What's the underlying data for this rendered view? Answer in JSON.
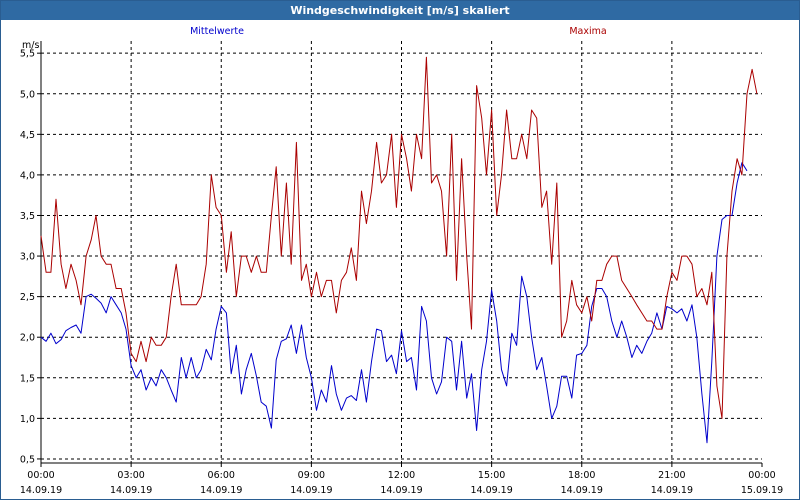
{
  "window": {
    "title": "Windgeschwindigkeit [m/s] skaliert"
  },
  "chart_data": {
    "type": "line",
    "title": "Windgeschwindigkeit [m/s] skaliert",
    "ylabel": "m/s",
    "xlabel": "",
    "ylim": [
      0.45,
      5.65
    ],
    "xlim": [
      0,
      24
    ],
    "grid": true,
    "y_ticks": [
      "0,5",
      "1,0",
      "1,5",
      "2,0",
      "2,5",
      "3,0",
      "3,5",
      "4,0",
      "4,5",
      "5,0",
      "5,5"
    ],
    "x_ticks": [
      {
        "time": "00:00",
        "date": "14.09.19"
      },
      {
        "time": "03:00",
        "date": "14.09.19"
      },
      {
        "time": "06:00",
        "date": "14.09.19"
      },
      {
        "time": "09:00",
        "date": "14.09.19"
      },
      {
        "time": "12:00",
        "date": "14.09.19"
      },
      {
        "time": "15:00",
        "date": "14.09.19"
      },
      {
        "time": "18:00",
        "date": "14.09.19"
      },
      {
        "time": "21:00",
        "date": "14.09.19"
      },
      {
        "time": "00:00",
        "date": "15.09.19"
      }
    ],
    "series": [
      {
        "name": "Mittelwerte",
        "color": "#0000cc",
        "points": [
          [
            0,
            2.0
          ],
          [
            0.17,
            1.95
          ],
          [
            0.33,
            2.05
          ],
          [
            0.5,
            1.92
          ],
          [
            0.67,
            1.97
          ],
          [
            0.83,
            2.08
          ],
          [
            1.0,
            2.12
          ],
          [
            1.17,
            2.15
          ],
          [
            1.33,
            2.05
          ],
          [
            1.5,
            2.5
          ],
          [
            1.67,
            2.53
          ],
          [
            1.83,
            2.48
          ],
          [
            2.0,
            2.42
          ],
          [
            2.17,
            2.3
          ],
          [
            2.33,
            2.5
          ],
          [
            2.5,
            2.4
          ],
          [
            2.67,
            2.3
          ],
          [
            2.83,
            2.1
          ],
          [
            3.0,
            1.65
          ],
          [
            3.17,
            1.5
          ],
          [
            3.33,
            1.6
          ],
          [
            3.5,
            1.35
          ],
          [
            3.67,
            1.5
          ],
          [
            3.83,
            1.4
          ],
          [
            4.0,
            1.6
          ],
          [
            4.17,
            1.5
          ],
          [
            4.33,
            1.35
          ],
          [
            4.5,
            1.2
          ],
          [
            4.67,
            1.75
          ],
          [
            4.83,
            1.5
          ],
          [
            5.0,
            1.75
          ],
          [
            5.17,
            1.5
          ],
          [
            5.33,
            1.6
          ],
          [
            5.5,
            1.85
          ],
          [
            5.67,
            1.72
          ],
          [
            5.83,
            2.1
          ],
          [
            6.0,
            2.38
          ],
          [
            6.17,
            2.3
          ],
          [
            6.33,
            1.55
          ],
          [
            6.5,
            1.9
          ],
          [
            6.67,
            1.3
          ],
          [
            6.83,
            1.6
          ],
          [
            7.0,
            1.8
          ],
          [
            7.17,
            1.52
          ],
          [
            7.33,
            1.2
          ],
          [
            7.5,
            1.15
          ],
          [
            7.67,
            0.88
          ],
          [
            7.83,
            1.72
          ],
          [
            8.0,
            1.95
          ],
          [
            8.17,
            1.98
          ],
          [
            8.33,
            2.15
          ],
          [
            8.5,
            1.8
          ],
          [
            8.67,
            2.15
          ],
          [
            8.83,
            1.75
          ],
          [
            9.0,
            1.5
          ],
          [
            9.17,
            1.1
          ],
          [
            9.33,
            1.35
          ],
          [
            9.5,
            1.2
          ],
          [
            9.67,
            1.65
          ],
          [
            9.83,
            1.3
          ],
          [
            10.0,
            1.1
          ],
          [
            10.17,
            1.25
          ],
          [
            10.33,
            1.28
          ],
          [
            10.5,
            1.22
          ],
          [
            10.67,
            1.6
          ],
          [
            10.83,
            1.2
          ],
          [
            11.0,
            1.7
          ],
          [
            11.17,
            2.1
          ],
          [
            11.33,
            2.08
          ],
          [
            11.5,
            1.7
          ],
          [
            11.67,
            1.78
          ],
          [
            11.83,
            1.55
          ],
          [
            12.0,
            2.08
          ],
          [
            12.17,
            1.7
          ],
          [
            12.33,
            1.75
          ],
          [
            12.5,
            1.35
          ],
          [
            12.67,
            2.38
          ],
          [
            12.83,
            2.2
          ],
          [
            13.0,
            1.5
          ],
          [
            13.17,
            1.3
          ],
          [
            13.33,
            1.45
          ],
          [
            13.5,
            2.0
          ],
          [
            13.67,
            1.95
          ],
          [
            13.83,
            1.35
          ],
          [
            14.0,
            1.95
          ],
          [
            14.17,
            1.25
          ],
          [
            14.33,
            1.55
          ],
          [
            14.5,
            0.85
          ],
          [
            14.67,
            1.6
          ],
          [
            14.83,
            1.95
          ],
          [
            15.0,
            2.58
          ],
          [
            15.17,
            2.2
          ],
          [
            15.33,
            1.6
          ],
          [
            15.5,
            1.4
          ],
          [
            15.67,
            2.05
          ],
          [
            15.83,
            1.9
          ],
          [
            16.0,
            2.75
          ],
          [
            16.17,
            2.5
          ],
          [
            16.33,
            2.0
          ],
          [
            16.5,
            1.6
          ],
          [
            16.67,
            1.75
          ],
          [
            16.83,
            1.4
          ],
          [
            17.0,
            1.0
          ],
          [
            17.17,
            1.15
          ],
          [
            17.33,
            1.52
          ],
          [
            17.5,
            1.52
          ],
          [
            17.67,
            1.25
          ],
          [
            17.83,
            1.78
          ],
          [
            18.0,
            1.8
          ],
          [
            18.17,
            1.9
          ],
          [
            18.33,
            2.38
          ],
          [
            18.5,
            2.6
          ],
          [
            18.67,
            2.6
          ],
          [
            18.83,
            2.5
          ],
          [
            19.0,
            2.2
          ],
          [
            19.17,
            2.0
          ],
          [
            19.33,
            2.2
          ],
          [
            19.5,
            2.0
          ],
          [
            19.67,
            1.75
          ],
          [
            19.83,
            1.9
          ],
          [
            20.0,
            1.8
          ],
          [
            20.17,
            1.95
          ],
          [
            20.33,
            2.05
          ],
          [
            20.5,
            2.3
          ],
          [
            20.67,
            2.1
          ],
          [
            20.83,
            2.38
          ],
          [
            21.0,
            2.35
          ],
          [
            21.17,
            2.3
          ],
          [
            21.33,
            2.35
          ],
          [
            21.5,
            2.2
          ],
          [
            21.67,
            2.4
          ],
          [
            21.83,
            2.0
          ],
          [
            22.0,
            1.3
          ],
          [
            22.17,
            0.7
          ],
          [
            22.33,
            1.7
          ],
          [
            22.5,
            3.0
          ],
          [
            22.67,
            3.45
          ],
          [
            22.83,
            3.5
          ],
          [
            23.0,
            3.5
          ],
          [
            23.17,
            3.9
          ],
          [
            23.33,
            4.15
          ],
          [
            23.5,
            4.05
          ]
        ]
      },
      {
        "name": "Maxima",
        "color": "#aa0000",
        "points": [
          [
            0,
            3.25
          ],
          [
            0.17,
            2.8
          ],
          [
            0.33,
            2.8
          ],
          [
            0.5,
            3.7
          ],
          [
            0.67,
            2.9
          ],
          [
            0.83,
            2.6
          ],
          [
            1.0,
            2.9
          ],
          [
            1.17,
            2.7
          ],
          [
            1.33,
            2.4
          ],
          [
            1.5,
            3.0
          ],
          [
            1.67,
            3.2
          ],
          [
            1.83,
            3.5
          ],
          [
            2.0,
            3.0
          ],
          [
            2.17,
            2.9
          ],
          [
            2.33,
            2.9
          ],
          [
            2.5,
            2.6
          ],
          [
            2.67,
            2.6
          ],
          [
            2.83,
            2.3
          ],
          [
            3.0,
            1.8
          ],
          [
            3.17,
            1.7
          ],
          [
            3.33,
            1.95
          ],
          [
            3.5,
            1.7
          ],
          [
            3.67,
            2.0
          ],
          [
            3.83,
            1.9
          ],
          [
            4.0,
            1.9
          ],
          [
            4.17,
            2.0
          ],
          [
            4.33,
            2.5
          ],
          [
            4.5,
            2.9
          ],
          [
            4.67,
            2.4
          ],
          [
            4.83,
            2.4
          ],
          [
            5.0,
            2.4
          ],
          [
            5.17,
            2.4
          ],
          [
            5.33,
            2.5
          ],
          [
            5.5,
            2.9
          ],
          [
            5.67,
            4.0
          ],
          [
            5.83,
            3.6
          ],
          [
            6.0,
            3.5
          ],
          [
            6.17,
            2.8
          ],
          [
            6.33,
            3.3
          ],
          [
            6.5,
            2.5
          ],
          [
            6.67,
            3.0
          ],
          [
            6.83,
            3.0
          ],
          [
            7.0,
            2.8
          ],
          [
            7.17,
            3.0
          ],
          [
            7.33,
            2.8
          ],
          [
            7.5,
            2.8
          ],
          [
            7.67,
            3.5
          ],
          [
            7.83,
            4.1
          ],
          [
            8.0,
            3.0
          ],
          [
            8.17,
            3.9
          ],
          [
            8.33,
            2.9
          ],
          [
            8.5,
            4.4
          ],
          [
            8.67,
            2.7
          ],
          [
            8.83,
            2.9
          ],
          [
            9.0,
            2.5
          ],
          [
            9.17,
            2.8
          ],
          [
            9.33,
            2.5
          ],
          [
            9.5,
            2.7
          ],
          [
            9.67,
            2.7
          ],
          [
            9.83,
            2.3
          ],
          [
            10.0,
            2.7
          ],
          [
            10.17,
            2.8
          ],
          [
            10.33,
            3.1
          ],
          [
            10.5,
            2.7
          ],
          [
            10.67,
            3.8
          ],
          [
            10.83,
            3.4
          ],
          [
            11.0,
            3.8
          ],
          [
            11.17,
            4.4
          ],
          [
            11.33,
            3.9
          ],
          [
            11.5,
            4.0
          ],
          [
            11.67,
            4.5
          ],
          [
            11.83,
            3.6
          ],
          [
            12.0,
            4.5
          ],
          [
            12.17,
            4.2
          ],
          [
            12.33,
            3.8
          ],
          [
            12.5,
            4.5
          ],
          [
            12.67,
            4.2
          ],
          [
            12.83,
            5.45
          ],
          [
            13.0,
            3.9
          ],
          [
            13.17,
            4.0
          ],
          [
            13.33,
            3.8
          ],
          [
            13.5,
            3.0
          ],
          [
            13.67,
            4.5
          ],
          [
            13.83,
            2.7
          ],
          [
            14.0,
            4.2
          ],
          [
            14.17,
            3.0
          ],
          [
            14.33,
            2.1
          ],
          [
            14.5,
            5.1
          ],
          [
            14.67,
            4.7
          ],
          [
            14.83,
            4.0
          ],
          [
            15.0,
            4.8
          ],
          [
            15.17,
            3.5
          ],
          [
            15.33,
            4.0
          ],
          [
            15.5,
            4.8
          ],
          [
            15.67,
            4.2
          ],
          [
            15.83,
            4.2
          ],
          [
            16.0,
            4.5
          ],
          [
            16.17,
            4.2
          ],
          [
            16.33,
            4.8
          ],
          [
            16.5,
            4.7
          ],
          [
            16.67,
            3.6
          ],
          [
            16.83,
            3.8
          ],
          [
            17.0,
            2.9
          ],
          [
            17.17,
            3.9
          ],
          [
            17.33,
            2.0
          ],
          [
            17.5,
            2.2
          ],
          [
            17.67,
            2.7
          ],
          [
            17.83,
            2.4
          ],
          [
            18.0,
            2.3
          ],
          [
            18.17,
            2.5
          ],
          [
            18.33,
            2.2
          ],
          [
            18.5,
            2.7
          ],
          [
            18.67,
            2.7
          ],
          [
            18.83,
            2.9
          ],
          [
            19.0,
            3.0
          ],
          [
            19.17,
            3.0
          ],
          [
            19.33,
            2.7
          ],
          [
            19.5,
            2.6
          ],
          [
            19.67,
            2.5
          ],
          [
            19.83,
            2.4
          ],
          [
            20.0,
            2.3
          ],
          [
            20.17,
            2.2
          ],
          [
            20.33,
            2.2
          ],
          [
            20.5,
            2.1
          ],
          [
            20.67,
            2.1
          ],
          [
            20.83,
            2.5
          ],
          [
            21.0,
            2.8
          ],
          [
            21.17,
            2.7
          ],
          [
            21.33,
            3.0
          ],
          [
            21.5,
            3.0
          ],
          [
            21.67,
            2.9
          ],
          [
            21.83,
            2.5
          ],
          [
            22.0,
            2.6
          ],
          [
            22.17,
            2.4
          ],
          [
            22.33,
            2.8
          ],
          [
            22.5,
            1.4
          ],
          [
            22.67,
            1.0
          ],
          [
            22.83,
            3.0
          ],
          [
            23.0,
            3.8
          ],
          [
            23.17,
            4.2
          ],
          [
            23.33,
            4.0
          ],
          [
            23.5,
            5.0
          ],
          [
            23.67,
            5.3
          ],
          [
            23.83,
            5.0
          ]
        ]
      }
    ]
  }
}
